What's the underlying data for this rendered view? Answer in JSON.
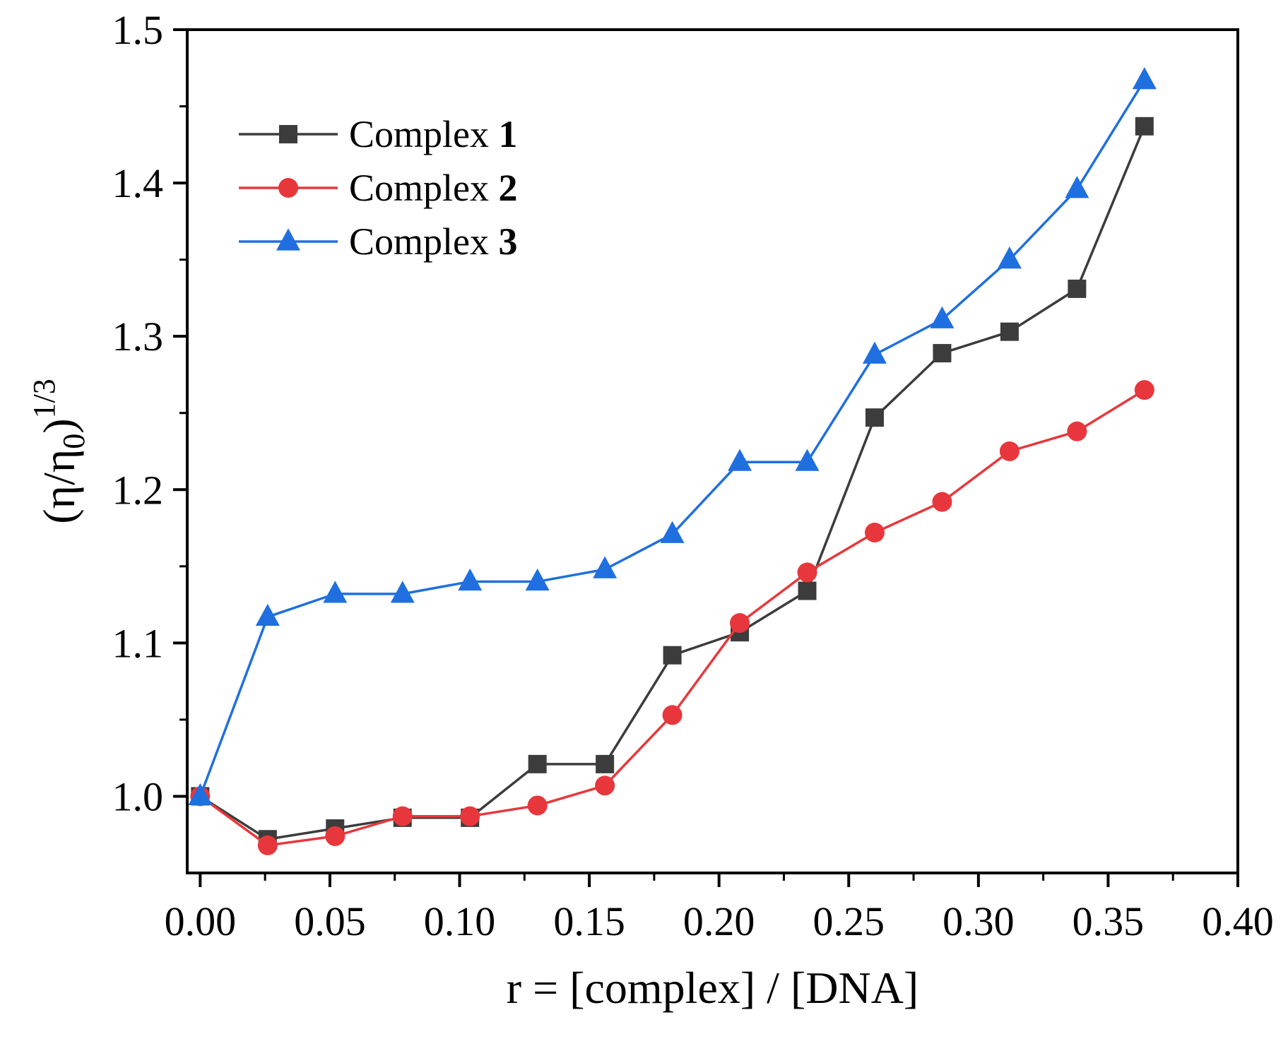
{
  "chart_data": {
    "type": "line",
    "xlabel": "r = [complex] / [DNA]",
    "ylabel": {
      "base": "(η/η",
      "sub": "0",
      "close": ")",
      "sup": "1/3"
    },
    "xlim": [
      -0.005,
      0.4
    ],
    "ylim": [
      0.95,
      1.5
    ],
    "xticks": [
      0.0,
      0.05,
      0.1,
      0.15,
      0.2,
      0.25,
      0.3,
      0.35,
      0.4
    ],
    "xtick_labels": [
      "0.00",
      "0.05",
      "0.10",
      "0.15",
      "0.20",
      "0.25",
      "0.30",
      "0.35",
      "0.40"
    ],
    "yticks": [
      1.0,
      1.1,
      1.2,
      1.3,
      1.4,
      1.5
    ],
    "ytick_labels": [
      "1.0",
      "1.1",
      "1.2",
      "1.3",
      "1.4",
      "1.5"
    ],
    "legend_position": "top-left",
    "x": [
      0.0,
      0.026,
      0.052,
      0.078,
      0.104,
      0.13,
      0.156,
      0.182,
      0.208,
      0.234,
      0.26,
      0.286,
      0.312,
      0.338,
      0.364
    ],
    "series": [
      {
        "name": "Complex 1",
        "label_text": "Complex ",
        "label_bold": "1",
        "color": "#3c3c3c",
        "marker": "square",
        "values": [
          1.0,
          0.972,
          0.979,
          0.986,
          0.986,
          1.021,
          1.021,
          1.092,
          1.107,
          1.134,
          1.247,
          1.289,
          1.303,
          1.331,
          1.437
        ]
      },
      {
        "name": "Complex 2",
        "label_text": "Complex ",
        "label_bold": "2",
        "color": "#e8373c",
        "marker": "circle",
        "values": [
          1.0,
          0.968,
          0.974,
          0.987,
          0.987,
          0.994,
          1.007,
          1.053,
          1.113,
          1.146,
          1.172,
          1.192,
          1.225,
          1.238,
          1.265
        ]
      },
      {
        "name": "Complex 3",
        "label_text": "Complex ",
        "label_bold": "3",
        "color": "#1f6fe0",
        "marker": "triangle",
        "values": [
          1.0,
          1.117,
          1.132,
          1.132,
          1.14,
          1.14,
          1.148,
          1.171,
          1.218,
          1.218,
          1.288,
          1.311,
          1.35,
          1.396,
          1.467
        ]
      }
    ]
  }
}
